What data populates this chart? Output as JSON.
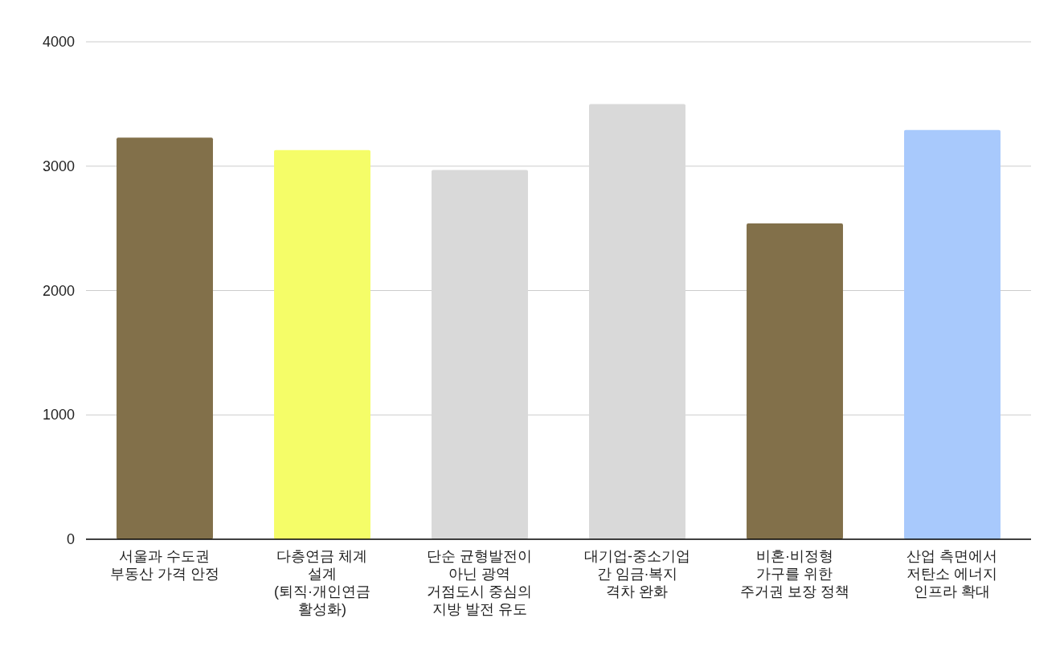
{
  "chart_data": {
    "type": "bar",
    "categories": [
      "서울과 수도권\n부동산 가격 안정",
      "다층연금 체계\n설계\n(퇴직·개인연금\n활성화)",
      "단순 균형발전이\n아닌 광역\n거점도시 중심의\n지방 발전 유도",
      "대기업-중소기업\n간 임금·복지\n격차 완화",
      "비혼·비정형\n가구를 위한\n주거권 보장 정책",
      "산업 측면에서\n저탄소 에너지\n인프라 확대"
    ],
    "values": [
      3230,
      3130,
      2970,
      3500,
      2540,
      3290
    ],
    "colors": [
      "#82704a",
      "#f5fd68",
      "#d9d9d9",
      "#d9d9d9",
      "#82704a",
      "#a8c9fc"
    ],
    "ylim": [
      0,
      4000
    ],
    "yticks": [
      0,
      1000,
      2000,
      3000,
      4000
    ],
    "grid": "y"
  }
}
